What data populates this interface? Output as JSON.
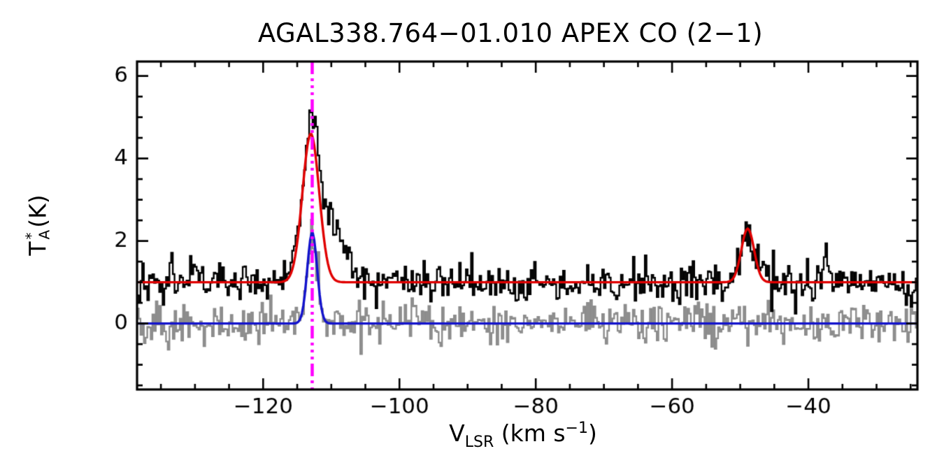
{
  "chart_data": {
    "type": "line",
    "title": "AGAL338.764−01.010  APEX CO (2−1)",
    "xlabel": {
      "base": "V",
      "sub": "LSR",
      "unit_open": " (km s",
      "unit_sup": "−1",
      "unit_close": ")"
    },
    "ylabel": {
      "base": "T",
      "sup": "*",
      "sub": "A",
      "unit": " (K)"
    },
    "xlim": [
      -138.5,
      -24.0
    ],
    "ylim": [
      -1.6,
      6.35
    ],
    "xticks": [
      -120,
      -100,
      -80,
      -60,
      -40
    ],
    "x_minor_step": 5,
    "yticks": [
      0,
      2,
      4,
      6
    ],
    "y_minor_step": 0.5,
    "channel_width_kms": 0.25,
    "grid": false,
    "legend": "none",
    "marker_line": {
      "name": "vlsr-marker",
      "x": -112.8,
      "color": "#ff00ff",
      "style": "dash-dot"
    },
    "series": [
      {
        "name": "residual-spectrum",
        "type": "histogram",
        "color": "#8c8c8c",
        "baseline": 0.0,
        "noise_rms": 0.24,
        "peaks": [
          {
            "center": -112.8,
            "amplitude": 2.0,
            "fwhm": 1.8
          }
        ]
      },
      {
        "name": "observed-spectrum",
        "type": "histogram",
        "color": "#000000",
        "baseline": 1.0,
        "noise_rms": 0.24,
        "peaks": [
          {
            "center": -113.0,
            "amplitude": 3.9,
            "fwhm": 3.0
          },
          {
            "center": -109.5,
            "amplitude": 1.4,
            "fwhm": 3.5
          },
          {
            "center": -48.9,
            "amplitude": 1.25,
            "fwhm": 2.4
          },
          {
            "center": -37.5,
            "amplitude": 0.8,
            "fwhm": 1.2
          }
        ]
      },
      {
        "name": "gaussian-fit-secondary",
        "type": "curve",
        "color": "#1212cc",
        "baseline": 0.0,
        "peaks": [
          {
            "center": -112.8,
            "amplitude": 2.2,
            "fwhm": 1.7
          }
        ]
      },
      {
        "name": "gaussian-fit-main",
        "type": "curve",
        "color": "#e00000",
        "baseline": 1.0,
        "peaks": [
          {
            "center": -113.0,
            "amplitude": 3.6,
            "fwhm": 2.9
          },
          {
            "center": -48.9,
            "amplitude": 1.3,
            "fwhm": 2.2
          }
        ]
      }
    ]
  }
}
